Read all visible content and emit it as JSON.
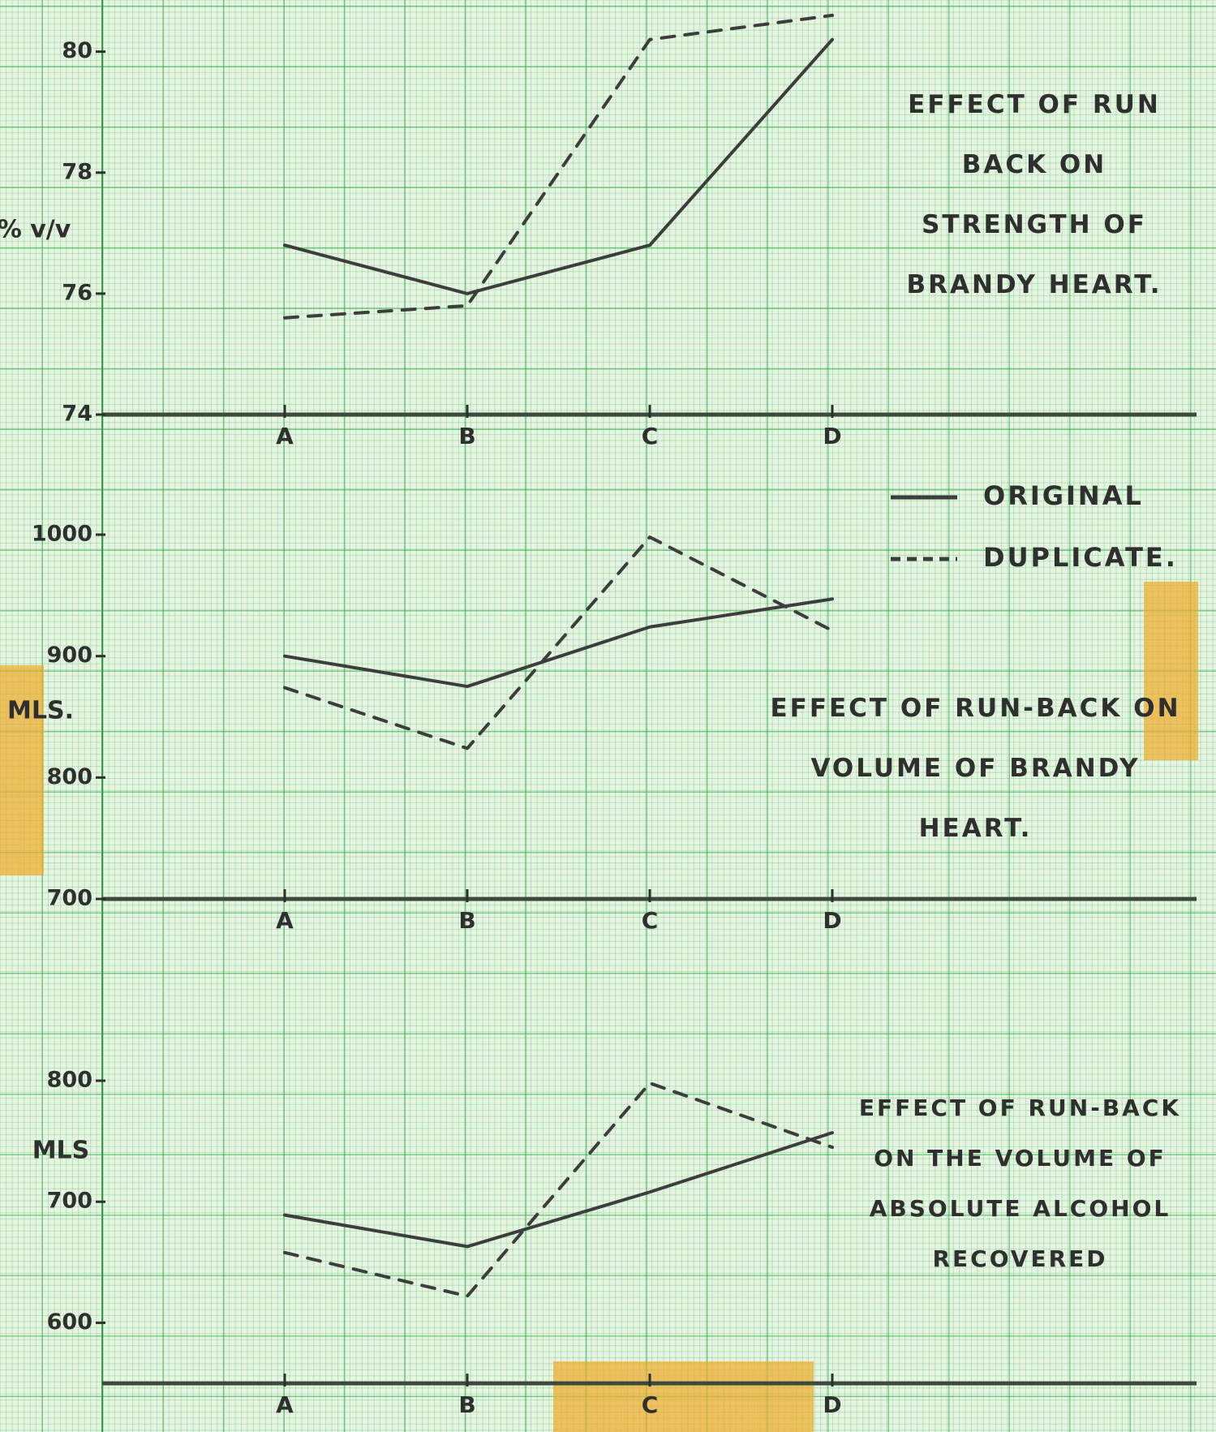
{
  "chart_data": [
    {
      "type": "line",
      "title": "EFFECT OF RUN BACK ON STRENGTH OF BRANDY HEART.",
      "y_label": "% v/v",
      "categories": [
        "A",
        "B",
        "C",
        "D"
      ],
      "ylim": [
        74,
        80.8
      ],
      "yticks": [
        74,
        76,
        78,
        80
      ],
      "series": [
        {
          "color": "#3d3d3d",
          "style": "solid",
          "values": [
            76.8,
            76.0,
            76.8,
            80.2
          ]
        },
        {
          "color": "#3d3d3d",
          "style": "dashed",
          "values": [
            75.6,
            75.8,
            80.2,
            80.6
          ]
        }
      ]
    },
    {
      "type": "line",
      "title": "EFFECT OF RUN-BACK ON VOLUME OF BRANDY HEART.",
      "y_label": "MLS.",
      "categories": [
        "A",
        "B",
        "C",
        "D"
      ],
      "ylim": [
        700,
        1000
      ],
      "yticks": [
        700,
        800,
        900,
        1000
      ],
      "legend": "upper right",
      "series": [
        {
          "name": "ORIGINAL",
          "color": "#3d3d3d",
          "style": "solid",
          "values": [
            900,
            875,
            924,
            947
          ]
        },
        {
          "name": "DUPLICATE.",
          "color": "#3d3d3d",
          "style": "dashed",
          "values": [
            874,
            824,
            998,
            921
          ]
        }
      ]
    },
    {
      "type": "line",
      "title": "EFFECT OF RUN-BACK ON THE VOLUME OF ABSOLUTE ALCOHOL RECOVERED",
      "y_label": "MLS",
      "categories": [
        "A",
        "B",
        "C",
        "D"
      ],
      "ylim": [
        550,
        800
      ],
      "yticks": [
        600,
        700,
        800
      ],
      "series": [
        {
          "color": "#3d3d3d",
          "style": "solid",
          "values": [
            689,
            663,
            708,
            757
          ]
        },
        {
          "color": "#3d3d3d",
          "style": "dashed",
          "values": [
            658,
            622,
            798,
            745
          ]
        }
      ]
    }
  ]
}
